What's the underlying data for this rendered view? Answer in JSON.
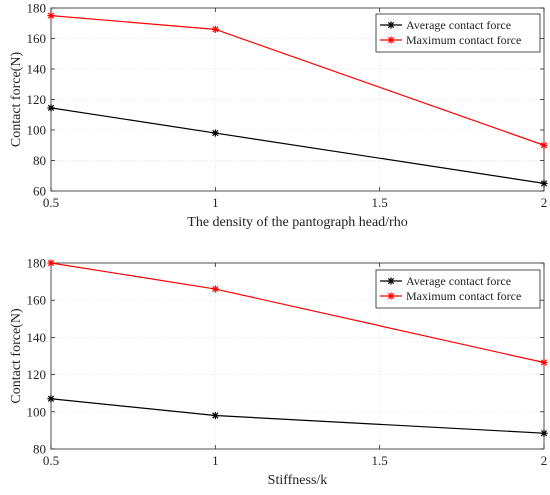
{
  "chart_data": [
    {
      "type": "line",
      "xlabel": "The density of the pantograph head/rho",
      "ylabel": "Contact force(N)",
      "x": [
        0.5,
        1,
        2
      ],
      "xticks": [
        0.5,
        1,
        1.5,
        2
      ],
      "xlim": [
        0.5,
        2
      ],
      "yticks": [
        60,
        80,
        100,
        120,
        140,
        160,
        180
      ],
      "ylim": [
        60,
        180
      ],
      "grid": true,
      "legend_position": "top-right",
      "series": [
        {
          "name": "Average contact force",
          "color": "#000000",
          "values": [
            114.5,
            98,
            65
          ]
        },
        {
          "name": "Maximum contact force",
          "color": "#ff0000",
          "values": [
            175,
            166,
            90
          ]
        }
      ]
    },
    {
      "type": "line",
      "xlabel": "Stiffness/k",
      "ylabel": "Contact force(N)",
      "x": [
        0.5,
        1,
        2
      ],
      "xticks": [
        0.5,
        1,
        1.5,
        2
      ],
      "xlim": [
        0.5,
        2
      ],
      "yticks": [
        80,
        100,
        120,
        140,
        160,
        180
      ],
      "ylim": [
        80,
        180
      ],
      "grid": true,
      "legend_position": "top-right",
      "series": [
        {
          "name": "Average contact force",
          "color": "#000000",
          "values": [
            107,
            98,
            88.5
          ]
        },
        {
          "name": "Maximum contact force",
          "color": "#ff0000",
          "values": [
            180,
            166,
            126.5
          ]
        }
      ]
    }
  ]
}
